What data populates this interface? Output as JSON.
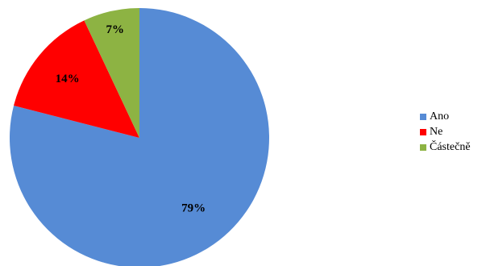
{
  "chart_data": {
    "type": "pie",
    "slices": [
      {
        "label": "Ano",
        "value": 79,
        "display": "79%",
        "color": "#568BD5"
      },
      {
        "label": "Ne",
        "value": 14,
        "display": "14%",
        "color": "#FF0000"
      },
      {
        "label": "Částečně",
        "value": 7,
        "display": "7%",
        "color": "#8DB343"
      }
    ],
    "start_angle_deg": 0,
    "direction": "clockwise",
    "legend_position": "right",
    "title": ""
  }
}
